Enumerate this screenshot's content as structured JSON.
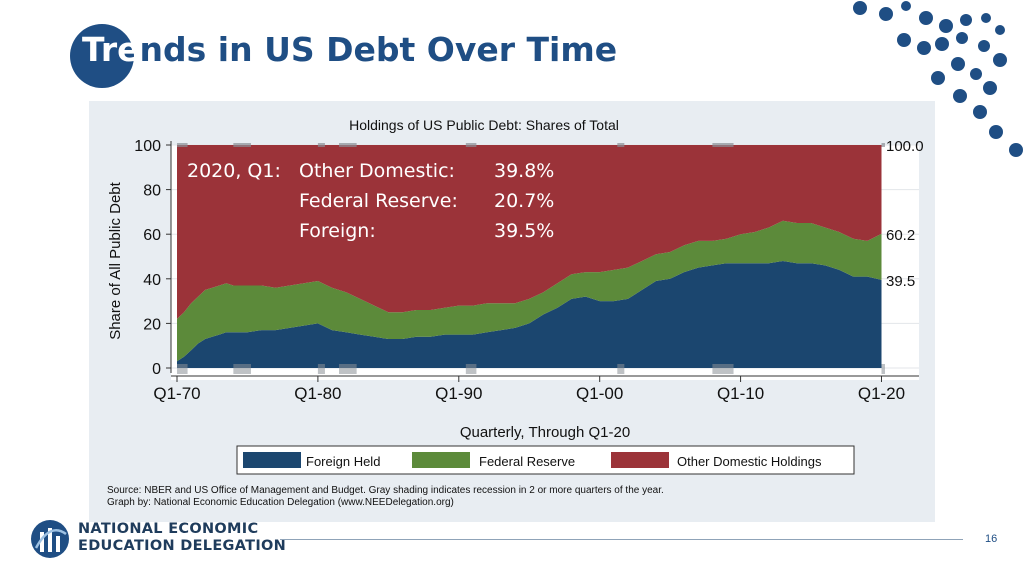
{
  "slide": {
    "title": "Trends in US Debt Over Time",
    "page_number": "16",
    "org_line1": "NATIONAL ECONOMIC",
    "org_line2": "EDUCATION DELEGATION",
    "accent_color": "#1f4e84"
  },
  "chart_data": {
    "type": "area",
    "stacked": true,
    "title": "Holdings of US Public Debt: Shares of Total",
    "xlabel": "Quarterly, Through Q1-20",
    "ylabel": "Share of All Public Debt",
    "xlim": [
      1970,
      2020.25
    ],
    "ylim": [
      0,
      100
    ],
    "x_ticks": [
      1970,
      1980,
      1990,
      2000,
      2010,
      2020
    ],
    "x_tick_labels": [
      "Q1-70",
      "Q1-80",
      "Q1-90",
      "Q1-00",
      "Q1-10",
      "Q1-20"
    ],
    "y_ticks": [
      0,
      20,
      40,
      60,
      80,
      100
    ],
    "y_tick_labels": [
      "0",
      "20",
      "40",
      "60",
      "80",
      "100"
    ],
    "grid": true,
    "legend_position": "bottom",
    "x": [
      1970,
      1970.5,
      1971,
      1971.5,
      1972,
      1972.5,
      1973,
      1973.5,
      1974,
      1975,
      1976,
      1977,
      1978,
      1979,
      1980,
      1981,
      1982,
      1983,
      1984,
      1985,
      1986,
      1987,
      1988,
      1989,
      1990,
      1991,
      1992,
      1993,
      1994,
      1995,
      1996,
      1997,
      1998,
      1999,
      2000,
      2001,
      2002,
      2003,
      2004,
      2005,
      2006,
      2007,
      2008,
      2009,
      2010,
      2011,
      2012,
      2013,
      2014,
      2015,
      2016,
      2017,
      2018,
      2019,
      2020
    ],
    "series": [
      {
        "name": "Foreign Held",
        "color": "#1b466f",
        "values": [
          3,
          5,
          8,
          11,
          13,
          14,
          15,
          16,
          16,
          16,
          17,
          17,
          18,
          19,
          20,
          17,
          16,
          15,
          14,
          13,
          13,
          14,
          14,
          15,
          15,
          15,
          16,
          17,
          18,
          20,
          24,
          27,
          31,
          32,
          30,
          30,
          31,
          35,
          39,
          40,
          43,
          45,
          46,
          47,
          47,
          47,
          47,
          48,
          47,
          47,
          46,
          44,
          41,
          41,
          39.5
        ]
      },
      {
        "name": "Federal Reserve",
        "color": "#5c8a3a",
        "values": [
          19,
          20,
          21,
          21,
          22,
          22,
          22,
          22,
          21,
          21,
          20,
          19,
          19,
          19,
          19,
          19,
          18,
          16,
          14,
          12,
          12,
          12,
          12,
          12,
          13,
          13,
          13,
          12,
          11,
          11,
          10,
          11,
          11,
          11,
          13,
          14,
          14,
          13,
          12,
          12,
          12,
          12,
          11,
          11,
          13,
          14,
          16,
          18,
          18,
          18,
          17,
          17,
          17,
          16,
          20.7
        ]
      },
      {
        "name": "Other Domestic Holdings",
        "color": "#9b3339",
        "values": [
          78,
          75,
          71,
          68,
          65,
          64,
          63,
          62,
          63,
          63,
          63,
          64,
          63,
          62,
          61,
          64,
          66,
          69,
          72,
          75,
          75,
          74,
          74,
          73,
          72,
          72,
          71,
          71,
          71,
          69,
          66,
          62,
          58,
          57,
          57,
          56,
          55,
          52,
          49,
          48,
          45,
          43,
          43,
          42,
          40,
          39,
          37,
          34,
          35,
          35,
          37,
          39,
          42,
          43,
          39.8
        ]
      }
    ],
    "end_labels": [
      "100.0",
      "60.2",
      "39.5"
    ],
    "annotation": {
      "prefix": "2020, Q1:",
      "rows": [
        {
          "label": "Other Domestic:",
          "value": "39.8%"
        },
        {
          "label": "Federal Reserve:",
          "value": "20.7%"
        },
        {
          "label": "Foreign:",
          "value": "39.5%"
        }
      ]
    },
    "recessions": [
      [
        1970,
        1970.75
      ],
      [
        1974,
        1975.25
      ],
      [
        1980,
        1980.5
      ],
      [
        1981.5,
        1982.75
      ],
      [
        1990.5,
        1991.25
      ],
      [
        2001.25,
        2001.75
      ],
      [
        2008,
        2009.5
      ],
      [
        2020,
        2020.25
      ]
    ],
    "source_line1": "Source: NBER and US Office of Management and Budget. Gray shading indicates recession in 2 or more quarters of the year.",
    "source_line2": "Graph by: National Economic Education Delegation (www.NEEDelegation.org)"
  }
}
